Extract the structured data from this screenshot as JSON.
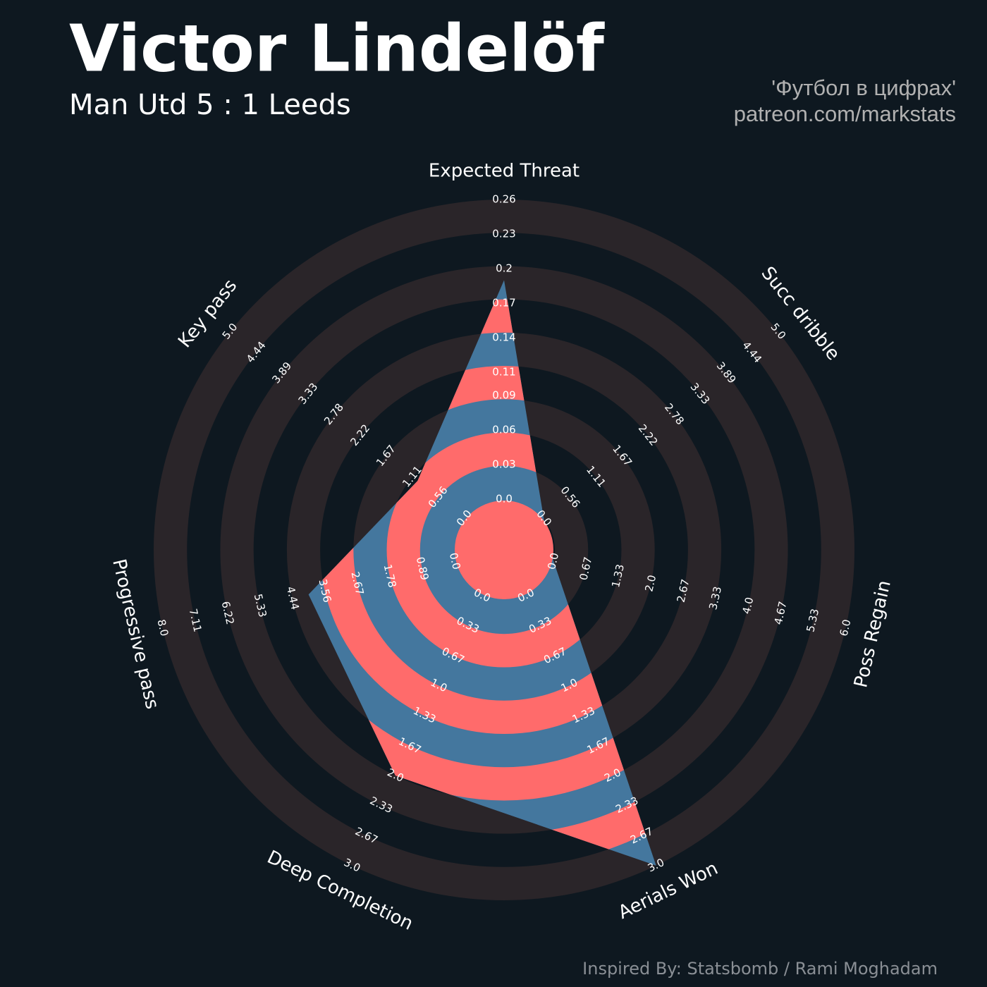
{
  "title": "Victor Lindelöf",
  "subtitle": "Man Utd 5 : 1 Leeds",
  "credit_lines": [
    "'Футбол в цифрах'",
    "patreon.com/markstats"
  ],
  "footer": "Inspired By: Statsbomb / Rami Moghadam",
  "chart_data": {
    "type": "radar",
    "categories": [
      "Expected Threat",
      "Succ dribble",
      "Poss Regain",
      "Aerials Won",
      "Deep Completion",
      "Progressive pass",
      "Key pass"
    ],
    "values": [
      0.19,
      0,
      0,
      3.0,
      2.0,
      4.0,
      1.0
    ],
    "colors": {
      "background": "#0e1820",
      "ring": "#2a2529",
      "fill": "#44779e",
      "fill_alt": "#ff6b6b"
    },
    "axes": [
      {
        "lim": [
          0,
          0.26
        ],
        "ticks": [
          {
            "value": 0,
            "label": "0.0"
          },
          0.03,
          0.06,
          0.09,
          0.11,
          0.14,
          0.17,
          0.2,
          0.23,
          0.26
        ]
      },
      {
        "lim": [
          0,
          5
        ],
        "ticks": [
          {
            "value": 0,
            "label": "0.0"
          },
          0.56,
          1.11,
          1.67,
          2.22,
          2.78,
          3.33,
          3.89,
          4.44,
          {
            "value": 5,
            "label": "5.0"
          }
        ]
      },
      {
        "lim": [
          0,
          6
        ],
        "ticks": [
          {
            "value": 0,
            "label": "0.0"
          },
          0.67,
          1.33,
          {
            "value": 2,
            "label": "2.0"
          },
          2.67,
          3.33,
          {
            "value": 4,
            "label": "4.0"
          },
          4.67,
          5.33,
          {
            "value": 6,
            "label": "6.0"
          }
        ]
      },
      {
        "lim": [
          0,
          3
        ],
        "ticks": [
          {
            "value": 0,
            "label": "0.0"
          },
          0.33,
          0.67,
          {
            "value": 1,
            "label": "1.0"
          },
          1.33,
          1.67,
          {
            "value": 2,
            "label": "2.0"
          },
          2.33,
          2.67,
          {
            "value": 3,
            "label": "3.0"
          }
        ]
      },
      {
        "lim": [
          0,
          3
        ],
        "ticks": [
          {
            "value": 0,
            "label": "0.0"
          },
          0.33,
          0.67,
          {
            "value": 1,
            "label": "1.0"
          },
          1.33,
          1.67,
          {
            "value": 2,
            "label": "2.0"
          },
          2.33,
          2.67,
          {
            "value": 3,
            "label": "3.0"
          }
        ]
      },
      {
        "lim": [
          0,
          8
        ],
        "ticks": [
          {
            "value": 0,
            "label": "0.0"
          },
          0.89,
          1.78,
          2.67,
          3.56,
          4.44,
          5.33,
          6.22,
          7.11,
          {
            "value": 8,
            "label": "8.0"
          }
        ]
      },
      {
        "lim": [
          0,
          5
        ],
        "ticks": [
          {
            "value": 0,
            "label": "0.0"
          },
          0.56,
          1.11,
          1.67,
          2.22,
          2.78,
          3.33,
          3.89,
          4.44,
          {
            "value": 5,
            "label": "5.0"
          }
        ]
      }
    ]
  }
}
